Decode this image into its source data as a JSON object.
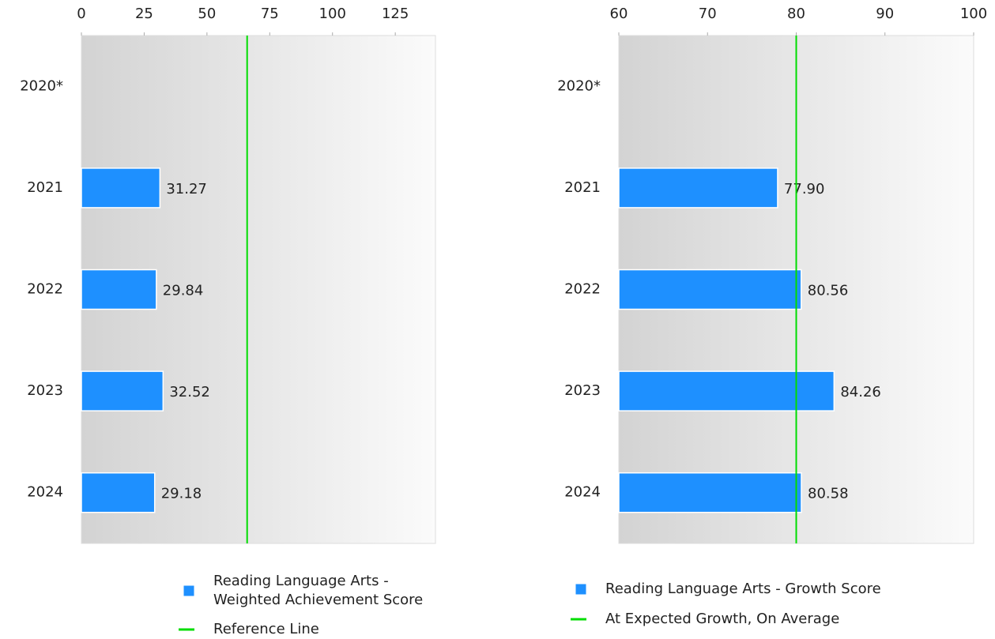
{
  "chart_data": [
    {
      "type": "bar",
      "orientation": "horizontal",
      "categories": [
        "2020*",
        "2021",
        "2022",
        "2023",
        "2024"
      ],
      "series": [
        {
          "name": "Reading Language Arts - Weighted Achievement Score",
          "color": "#1e90ff",
          "values": [
            null,
            31.27,
            29.84,
            32.52,
            29.18
          ]
        }
      ],
      "reference_line": {
        "name": "Reference Line",
        "value": 66,
        "color": "#00dd00"
      },
      "xlim": [
        0,
        141
      ],
      "xticks": [
        0,
        25,
        50,
        75,
        100,
        125
      ],
      "legend": "bottom"
    },
    {
      "type": "bar",
      "orientation": "horizontal",
      "categories": [
        "2020*",
        "2021",
        "2022",
        "2023",
        "2024"
      ],
      "series": [
        {
          "name": "Reading Language Arts - Growth Score",
          "color": "#1e90ff",
          "values": [
            null,
            77.9,
            80.56,
            84.26,
            80.58
          ],
          "value_labels": [
            null,
            "77.90",
            "80.56",
            "84.26",
            "80.58"
          ]
        }
      ],
      "reference_line": {
        "name": "At Expected Growth, On Average",
        "value": 80,
        "color": "#00dd00"
      },
      "xlim": [
        60,
        100
      ],
      "xticks": [
        60,
        70,
        80,
        90,
        100
      ],
      "legend": "bottom"
    }
  ]
}
